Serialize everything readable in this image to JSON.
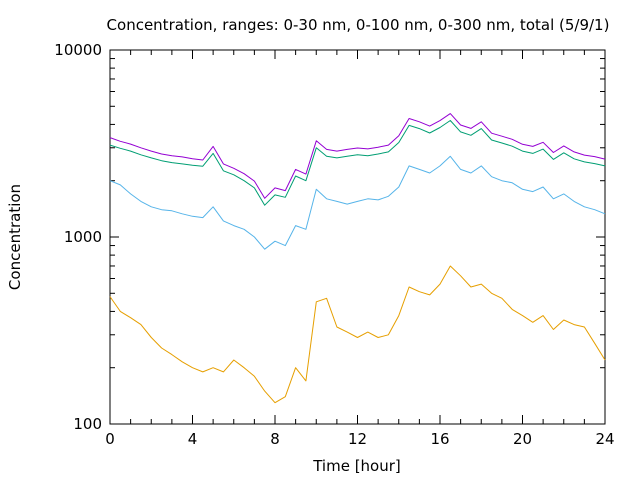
{
  "chart_data": {
    "type": "line",
    "title": "Concentration, ranges: 0-30 nm, 0-100 nm, 0-300 nm, total (5/9/1)",
    "xlabel": "Time [hour]",
    "ylabel": "Concentration",
    "xlim": [
      0,
      24
    ],
    "ylim": [
      100,
      10000
    ],
    "yscale": "log",
    "xticks": [
      "0",
      "4",
      "8",
      "12",
      "16",
      "20",
      "24"
    ],
    "yticks": [
      "100",
      "1000",
      "10000"
    ],
    "grid": false,
    "legend": "none",
    "series": [
      {
        "color": "#e69f00",
        "x": [
          0,
          0.5,
          1,
          1.5,
          2,
          2.5,
          3,
          3.5,
          4,
          4.5,
          5,
          5.5,
          6,
          6.5,
          7,
          7.5,
          8,
          8.5,
          9,
          9.5,
          10,
          10.5,
          11,
          11.5,
          12,
          12.5,
          13,
          13.5,
          14,
          14.5,
          15,
          15.5,
          16,
          16.5,
          17,
          17.5,
          18,
          18.5,
          19,
          19.5,
          20,
          20.5,
          21,
          21.5,
          22,
          22.5,
          23,
          23.5,
          24
        ],
        "y": [
          480,
          400,
          370,
          340,
          290,
          255,
          235,
          215,
          200,
          190,
          200,
          190,
          220,
          200,
          180,
          150,
          130,
          140,
          200,
          170,
          450,
          470,
          330,
          310,
          290,
          310,
          290,
          300,
          380,
          540,
          510,
          490,
          560,
          700,
          620,
          540,
          560,
          500,
          470,
          410,
          380,
          350,
          380,
          320,
          360,
          340,
          330,
          270,
          220
        ]
      },
      {
        "color": "#56b4e9",
        "x": [
          0,
          0.5,
          1,
          1.5,
          2,
          2.5,
          3,
          3.5,
          4,
          4.5,
          5,
          5.5,
          6,
          6.5,
          7,
          7.5,
          8,
          8.5,
          9,
          9.5,
          10,
          10.5,
          11,
          11.5,
          12,
          12.5,
          13,
          13.5,
          14,
          14.5,
          15,
          15.5,
          16,
          16.5,
          17,
          17.5,
          18,
          18.5,
          19,
          19.5,
          20,
          20.5,
          21,
          21.5,
          22,
          22.5,
          23,
          23.5,
          24
        ],
        "y": [
          2000,
          1900,
          1700,
          1550,
          1450,
          1400,
          1380,
          1330,
          1290,
          1270,
          1450,
          1220,
          1150,
          1100,
          1000,
          860,
          950,
          900,
          1150,
          1100,
          1800,
          1600,
          1550,
          1500,
          1550,
          1600,
          1580,
          1650,
          1850,
          2400,
          2300,
          2200,
          2400,
          2700,
          2300,
          2200,
          2400,
          2100,
          2000,
          1950,
          1800,
          1750,
          1850,
          1600,
          1700,
          1550,
          1450,
          1400,
          1330
        ]
      },
      {
        "color": "#009e73",
        "x": [
          0,
          0.5,
          1,
          1.5,
          2,
          2.5,
          3,
          3.5,
          4,
          4.5,
          5,
          5.5,
          6,
          6.5,
          7,
          7.5,
          8,
          8.5,
          9,
          9.5,
          10,
          10.5,
          11,
          11.5,
          12,
          12.5,
          13,
          13.5,
          14,
          14.5,
          15,
          15.5,
          16,
          16.5,
          17,
          17.5,
          18,
          18.5,
          19,
          19.5,
          20,
          20.5,
          21,
          21.5,
          22,
          22.5,
          23,
          23.5,
          24
        ],
        "y": [
          3100,
          2980,
          2880,
          2750,
          2650,
          2560,
          2500,
          2460,
          2420,
          2390,
          2800,
          2260,
          2150,
          2000,
          1830,
          1480,
          1680,
          1630,
          2120,
          2000,
          3000,
          2700,
          2650,
          2700,
          2750,
          2720,
          2780,
          2850,
          3200,
          3950,
          3800,
          3600,
          3850,
          4200,
          3650,
          3500,
          3800,
          3300,
          3180,
          3060,
          2880,
          2800,
          2950,
          2600,
          2820,
          2620,
          2520,
          2470,
          2400
        ]
      },
      {
        "color": "#9400d3",
        "x": [
          0,
          0.5,
          1,
          1.5,
          2,
          2.5,
          3,
          3.5,
          4,
          4.5,
          5,
          5.5,
          6,
          6.5,
          7,
          7.5,
          8,
          8.5,
          9,
          9.5,
          10,
          10.5,
          11,
          11.5,
          12,
          12.5,
          13,
          13.5,
          14,
          14.5,
          15,
          15.5,
          16,
          16.5,
          17,
          17.5,
          18,
          18.5,
          19,
          19.5,
          20,
          20.5,
          21,
          21.5,
          22,
          22.5,
          23,
          23.5,
          24
        ],
        "y": [
          3400,
          3250,
          3140,
          3000,
          2880,
          2780,
          2720,
          2680,
          2620,
          2580,
          3050,
          2460,
          2330,
          2180,
          1990,
          1610,
          1830,
          1770,
          2300,
          2170,
          3270,
          2940,
          2880,
          2940,
          2990,
          2960,
          3020,
          3100,
          3480,
          4300,
          4130,
          3920,
          4190,
          4570,
          3970,
          3810,
          4130,
          3590,
          3460,
          3330,
          3130,
          3050,
          3210,
          2830,
          3070,
          2850,
          2740,
          2690,
          2610
        ]
      }
    ]
  }
}
